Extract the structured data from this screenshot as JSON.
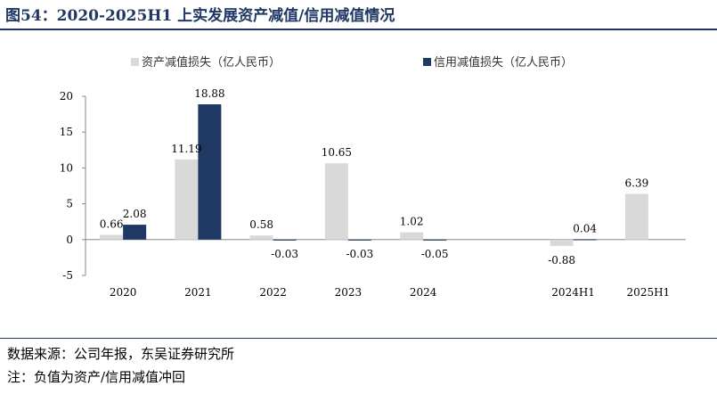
{
  "header": {
    "title": "图54：2020-2025H1 上实发展资产减值/信用减值情况"
  },
  "footer": {
    "source": "数据来源：公司年报，东吴证券研究所",
    "note": "注：负值为资产/信用减值冲回"
  },
  "colors": {
    "title": "#1f3864",
    "series1": "#d9d9d9",
    "series2": "#1f3864"
  },
  "chart_data": {
    "type": "bar",
    "categories": [
      "2020",
      "2021",
      "2022",
      "2023",
      "2024",
      "",
      "2024H1",
      "2025H1"
    ],
    "series": [
      {
        "name": "资产减值损失（亿人民币）",
        "values": [
          0.66,
          11.19,
          0.58,
          10.65,
          1.02,
          null,
          -0.88,
          6.39
        ]
      },
      {
        "name": "信用减值损失（亿人民币）",
        "values": [
          2.08,
          18.88,
          -0.03,
          -0.03,
          -0.05,
          null,
          0.04,
          null
        ]
      }
    ],
    "ylim": [
      -5,
      20
    ],
    "yticks": [
      -5,
      0,
      5,
      10,
      15,
      20
    ],
    "legend": "top",
    "grid": false
  }
}
